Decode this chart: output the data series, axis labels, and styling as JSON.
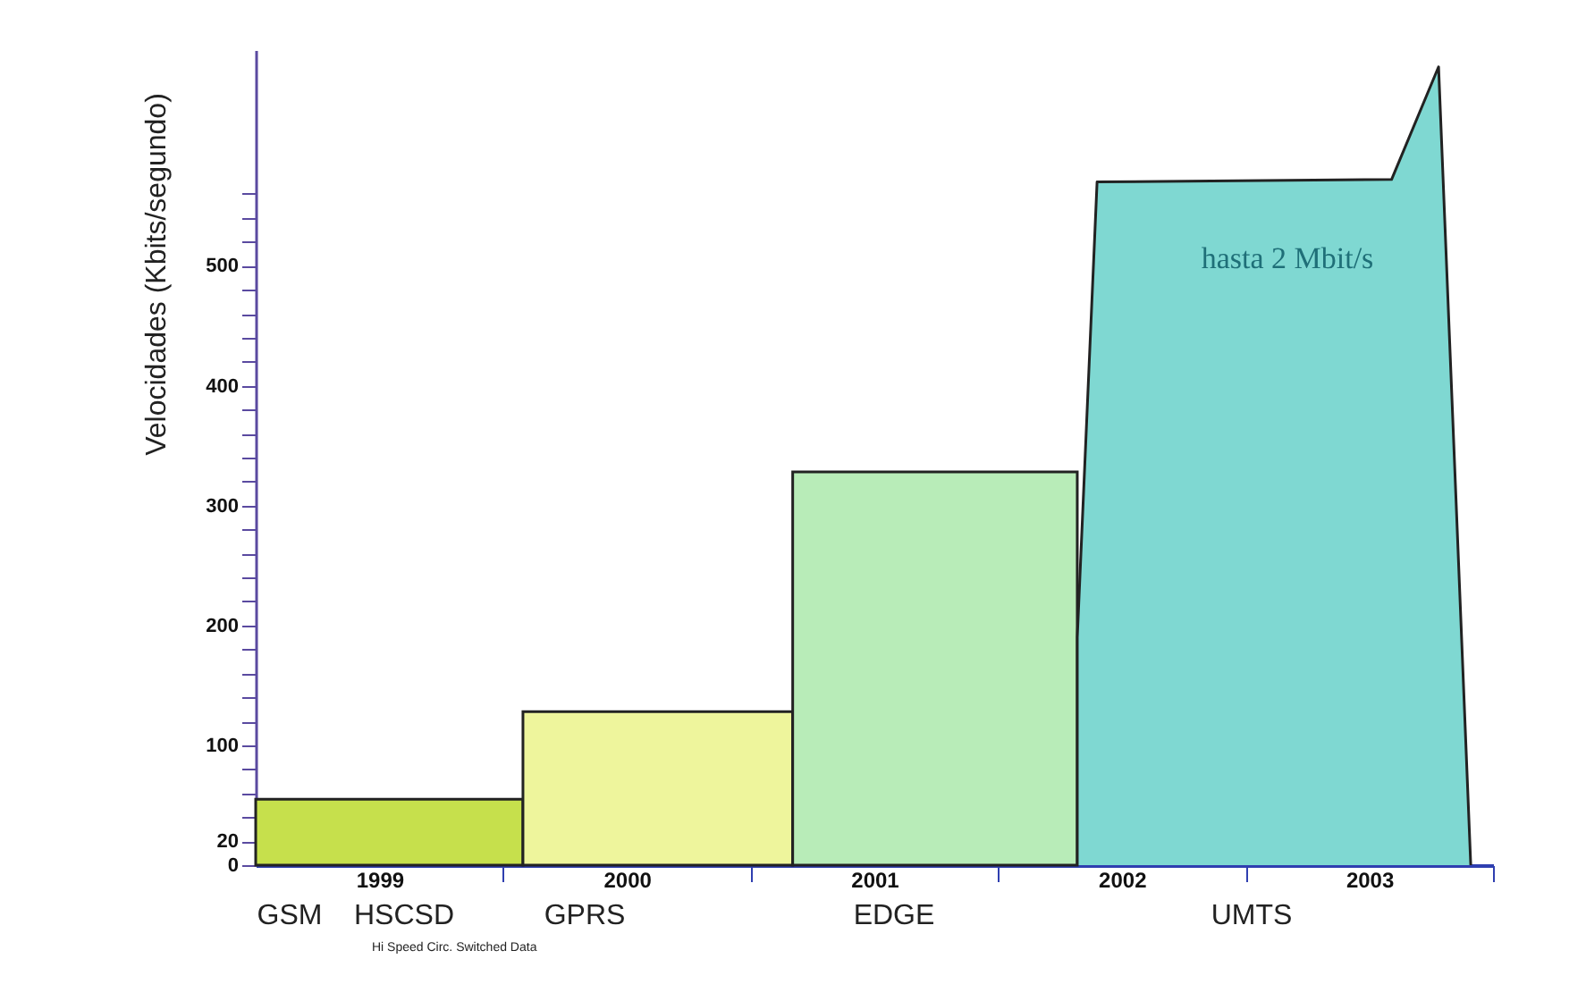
{
  "chart_data": {
    "type": "histogram",
    "ylabel": "Velocidades (Kbits/segundo)",
    "xlim": [
      1998.5,
      2003.5
    ],
    "xticks": [
      1999,
      2000,
      2001,
      2002,
      2003,
      {
        "value": 1999.5,
        "label": null
      },
      {
        "value": 2000.5,
        "label": null
      },
      {
        "value": 2001.5,
        "label": null
      },
      {
        "value": 2002.5,
        "label": null
      },
      {
        "value": 2003.5,
        "label": null
      }
    ],
    "ylim": [
      0,
      680
    ],
    "yticks": [
      0,
      20,
      {
        "value": 40,
        "label": null
      },
      {
        "value": 60,
        "label": null
      },
      {
        "value": 80,
        "label": null
      },
      100,
      {
        "value": 120,
        "label": null
      },
      {
        "value": 140,
        "label": null
      },
      {
        "value": 160,
        "label": null
      },
      {
        "value": 180,
        "label": null
      },
      200,
      {
        "value": 220,
        "label": null
      },
      {
        "value": 240,
        "label": null
      },
      {
        "value": 260,
        "label": null
      },
      {
        "value": 280,
        "label": null
      },
      300,
      {
        "value": 320,
        "label": null
      },
      {
        "value": 340,
        "label": null
      },
      {
        "value": 360,
        "label": null
      },
      {
        "value": 380,
        "label": null
      },
      400,
      {
        "value": 420,
        "label": null
      },
      {
        "value": 440,
        "label": null
      },
      {
        "value": 460,
        "label": null
      },
      {
        "value": 480,
        "label": null
      },
      500,
      {
        "value": 520,
        "label": null
      },
      {
        "value": 540,
        "label": null
      },
      {
        "value": 560,
        "label": null
      }
    ],
    "series": [
      {
        "bins": [
          1998.5,
          1999.58,
          2000.67,
          2001.82
        ],
        "values": [
          55,
          128,
          328
        ],
        "colors": [
          "#c6e04c",
          "#eef59c",
          "#b8ecb8"
        ]
      },
      {
        "type": "area",
        "x": [
          2001.82,
          2001.82,
          2001.9,
          2003.09,
          2003.28,
          2003.41
        ],
        "values": [
          0,
          190,
          570,
          572,
          666,
          0
        ],
        "color": "#7fd8d2"
      }
    ],
    "annotations": [
      "hasta 2 Mbit/s",
      "GSM",
      "HSCSD",
      "Hi Speed Circ. Switched Data",
      "GPRS",
      "EDGE",
      "UMTS"
    ],
    "grid": false
  }
}
